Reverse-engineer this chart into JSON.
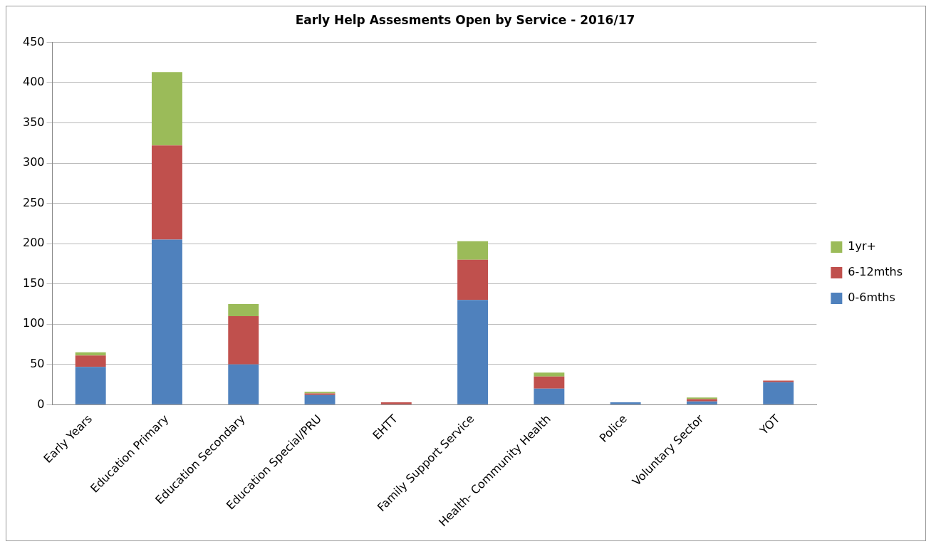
{
  "chart_data": {
    "type": "bar",
    "title": "Early Help Assesments Open by Service - 2016/17",
    "categories": [
      "Early Years",
      "Education Primary",
      "Education Secondary",
      "Education Special/PRU",
      "EHTT",
      "Family Support Service",
      "Health- Community Health",
      "Police",
      "Voluntary Sector",
      "YOT"
    ],
    "series": [
      {
        "name": "0-6mths",
        "color": "#4f81bd",
        "values": [
          47,
          205,
          50,
          12,
          0,
          130,
          20,
          3,
          4,
          28
        ]
      },
      {
        "name": "6-12mths",
        "color": "#c0504d",
        "values": [
          14,
          117,
          60,
          2,
          3,
          50,
          15,
          0,
          3,
          2
        ]
      },
      {
        "name": "1yr+",
        "color": "#9bbb59",
        "values": [
          4,
          91,
          15,
          2,
          0,
          23,
          5,
          0,
          2,
          0
        ]
      }
    ],
    "stacked": true,
    "ylim": [
      0,
      450
    ],
    "yticks": [
      0,
      50,
      100,
      150,
      200,
      250,
      300,
      350,
      400,
      450
    ],
    "grid": "y",
    "legend": "right"
  }
}
